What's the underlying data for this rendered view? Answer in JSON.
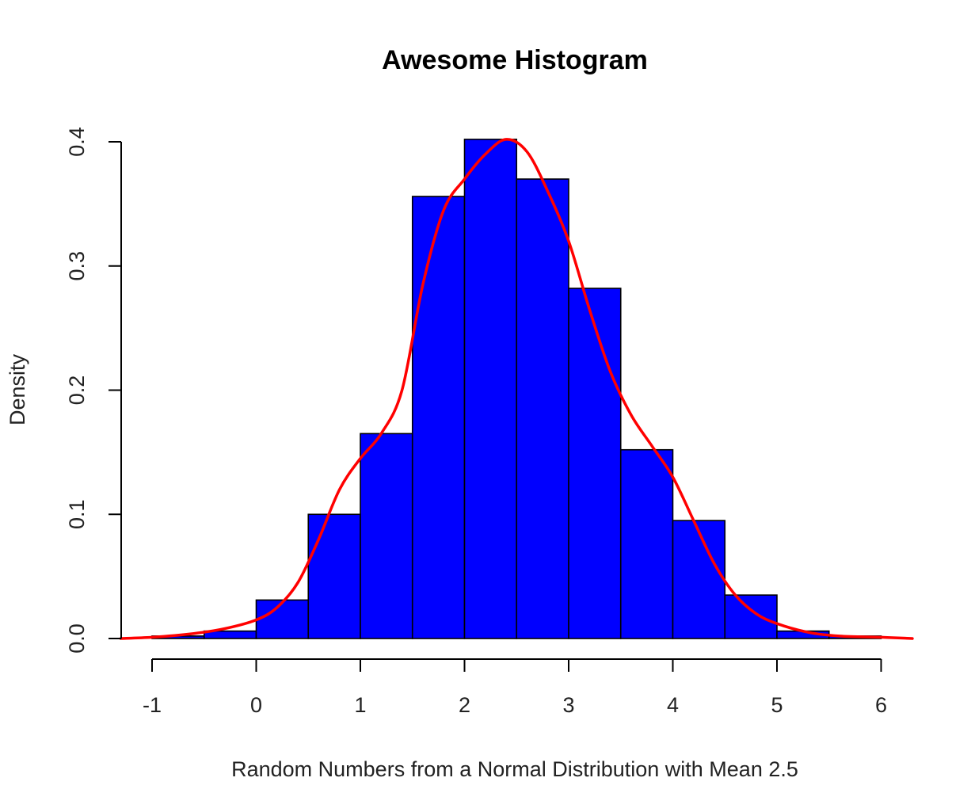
{
  "chart_data": {
    "type": "bar",
    "title": "Awesome Histogram",
    "xlabel": "Random Numbers from a Normal Distribution with Mean 2.5",
    "ylabel": "Density",
    "xlim": [
      -1,
      6
    ],
    "ylim": [
      0,
      0.4
    ],
    "x_ticks": [
      "-1",
      "0",
      "1",
      "2",
      "3",
      "4",
      "5",
      "6"
    ],
    "y_ticks": [
      "0.0",
      "0.1",
      "0.2",
      "0.3",
      "0.4"
    ],
    "bins": [
      {
        "start": -1.0,
        "end": -0.5,
        "density": 0.002
      },
      {
        "start": -0.5,
        "end": 0.0,
        "density": 0.006
      },
      {
        "start": 0.0,
        "end": 0.5,
        "density": 0.031
      },
      {
        "start": 0.5,
        "end": 1.0,
        "density": 0.1
      },
      {
        "start": 1.0,
        "end": 1.5,
        "density": 0.165
      },
      {
        "start": 1.5,
        "end": 2.0,
        "density": 0.356
      },
      {
        "start": 2.0,
        "end": 2.5,
        "density": 0.402
      },
      {
        "start": 2.5,
        "end": 3.0,
        "density": 0.37
      },
      {
        "start": 3.0,
        "end": 3.5,
        "density": 0.282
      },
      {
        "start": 3.5,
        "end": 4.0,
        "density": 0.152
      },
      {
        "start": 4.0,
        "end": 4.5,
        "density": 0.095
      },
      {
        "start": 4.5,
        "end": 5.0,
        "density": 0.035
      },
      {
        "start": 5.0,
        "end": 5.5,
        "density": 0.006
      },
      {
        "start": 5.5,
        "end": 6.0,
        "density": 0.002
      }
    ],
    "density_curve": {
      "x": [
        -1.3,
        -1.0,
        -0.6,
        -0.3,
        0.0,
        0.2,
        0.4,
        0.6,
        0.8,
        1.0,
        1.2,
        1.4,
        1.6,
        1.8,
        2.0,
        2.2,
        2.4,
        2.6,
        2.8,
        3.0,
        3.2,
        3.4,
        3.6,
        3.8,
        4.0,
        4.2,
        4.4,
        4.6,
        4.8,
        5.0,
        5.3,
        5.6,
        6.0,
        6.3
      ],
      "y": [
        0.0,
        0.001,
        0.004,
        0.008,
        0.015,
        0.025,
        0.045,
        0.08,
        0.12,
        0.145,
        0.165,
        0.2,
        0.285,
        0.345,
        0.37,
        0.39,
        0.402,
        0.392,
        0.36,
        0.32,
        0.265,
        0.215,
        0.18,
        0.155,
        0.13,
        0.095,
        0.06,
        0.035,
        0.02,
        0.012,
        0.005,
        0.002,
        0.001,
        0.0
      ],
      "color": "#ff0000"
    },
    "bar_color": "#0000ff",
    "grid": false,
    "legend": "none"
  }
}
